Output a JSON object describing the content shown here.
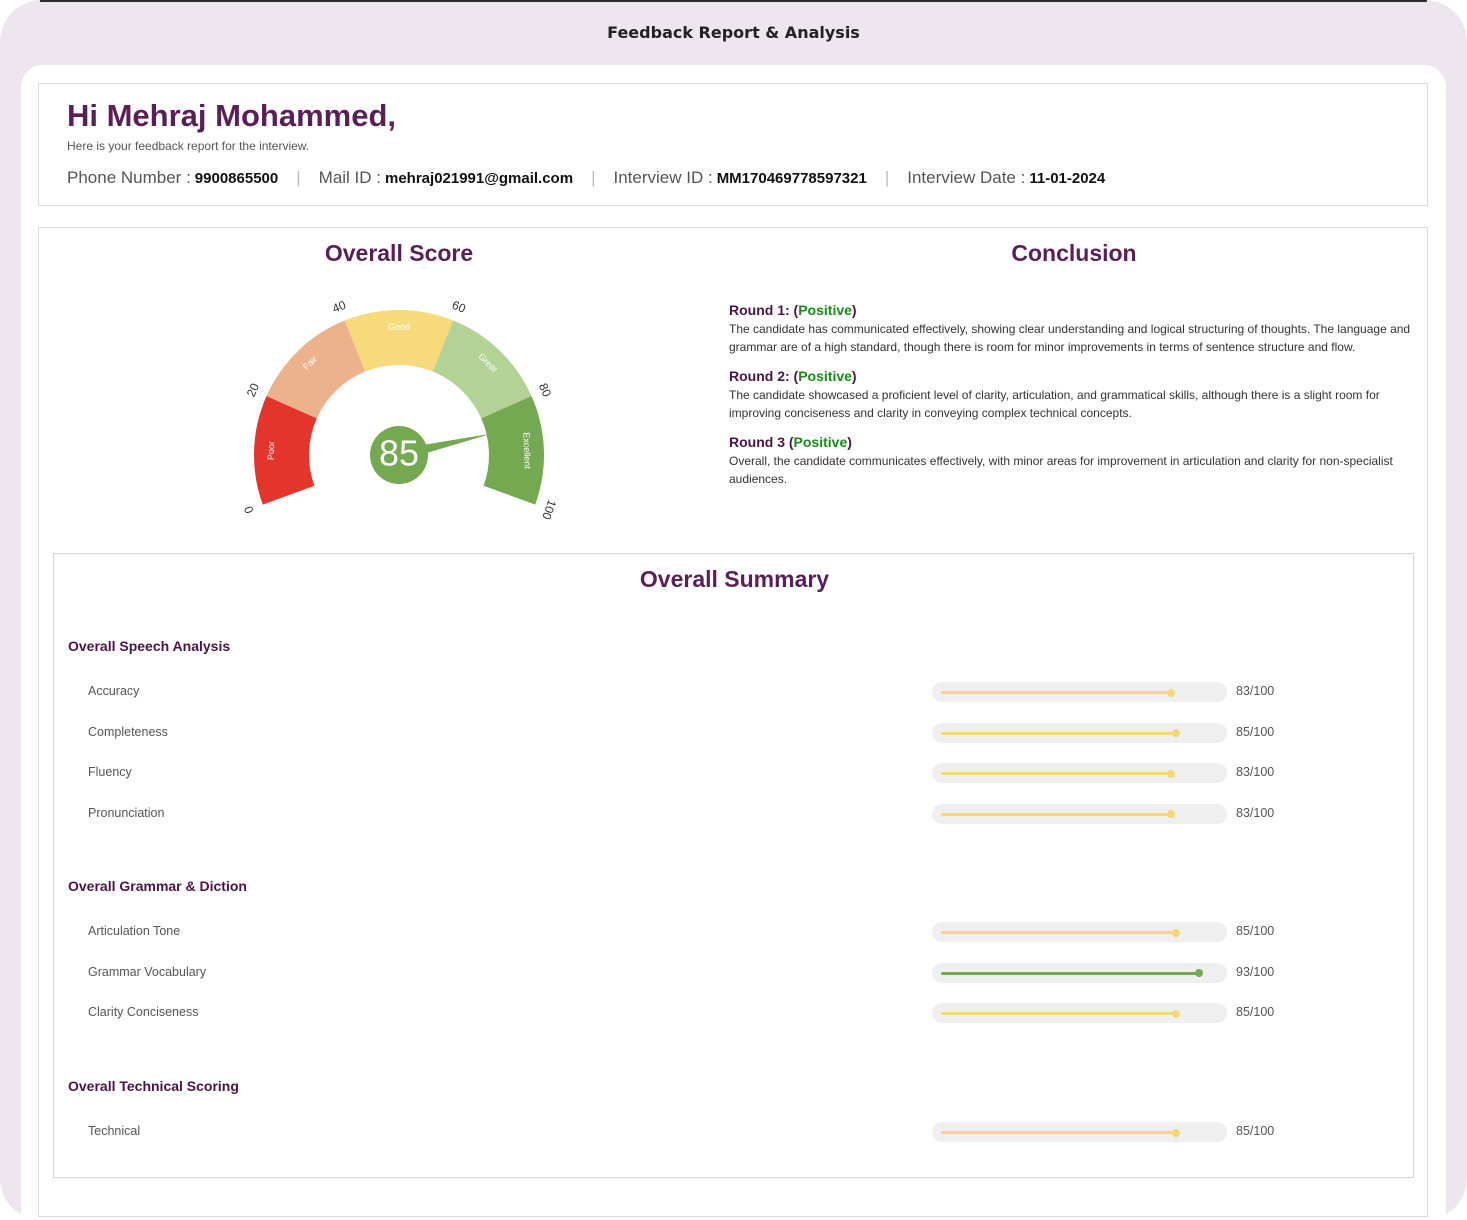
{
  "window": {
    "title": "Feedback Report & Analysis"
  },
  "header": {
    "greeting": "Hi Mehraj Mohammed,",
    "subtitle": "Here is your feedback report for the interview.",
    "phone_label": "Phone Number :",
    "phone": "9900865500",
    "mail_label": "Mail ID :",
    "mail": "mehraj021991@gmail.com",
    "interview_id_label": "Interview ID :",
    "interview_id": "MM170469778597321",
    "interview_date_label": "Interview Date :",
    "interview_date": "11-01-2024"
  },
  "overall_score": {
    "title": "Overall Score",
    "score": 85,
    "score_text": "85",
    "ticks": [
      "0",
      "20",
      "40",
      "60",
      "80",
      "100"
    ],
    "bands": [
      {
        "label": "Poor",
        "from": 0,
        "to": 20,
        "color": "#e3352c"
      },
      {
        "label": "Fair",
        "from": 20,
        "to": 40,
        "color": "#ebb28c"
      },
      {
        "label": "Good",
        "from": 40,
        "to": 60,
        "color": "#f7da7c"
      },
      {
        "label": "Great",
        "from": 60,
        "to": 80,
        "color": "#b3d296"
      },
      {
        "label": "Excellent",
        "from": 80,
        "to": 100,
        "color": "#74a951"
      }
    ],
    "needle_color": "#74a951"
  },
  "conclusion": {
    "title": "Conclusion",
    "rounds": [
      {
        "label": "Round 1:",
        "status": "Positive",
        "text": "The candidate has communicated effectively, showing clear understanding and logical structuring of thoughts. The language and grammar are of a high standard, though there is room for minor improvements in terms of sentence structure and flow."
      },
      {
        "label": "Round 2:",
        "status": "Positive",
        "text": "The candidate showcased a proficient level of clarity, articulation, and grammatical skills, although there is a slight room for improving conciseness and clarity in conveying complex technical concepts."
      },
      {
        "label": "Round 3",
        "status": "Positive",
        "text": "Overall, the candidate communicates effectively, with minor areas for improvement in articulation and clarity for non-specialist audiences."
      }
    ]
  },
  "summary": {
    "title": "Overall Summary",
    "groups": [
      {
        "title": "Overall Speech Analysis",
        "metrics": [
          {
            "label": "Accuracy",
            "value": 83,
            "score_text": "83/100",
            "color": "#f5d77a"
          },
          {
            "label": "Completeness",
            "value": 85,
            "score_text": "85/100",
            "color": "#f5d77a"
          },
          {
            "label": "Fluency",
            "value": 83,
            "score_text": "83/100",
            "color": "#f5d77a"
          },
          {
            "label": "Pronunciation",
            "value": 83,
            "score_text": "83/100",
            "color": "#f5d77a"
          }
        ]
      },
      {
        "title": "Overall Grammar & Diction",
        "metrics": [
          {
            "label": "Articulation Tone",
            "value": 85,
            "score_text": "85/100",
            "color": "#f5d77a"
          },
          {
            "label": "Grammar Vocabulary",
            "value": 93,
            "score_text": "93/100",
            "color": "#74a951"
          },
          {
            "label": "Clarity Conciseness",
            "value": 85,
            "score_text": "85/100",
            "color": "#f5d77a"
          }
        ]
      },
      {
        "title": "Overall Technical Scoring",
        "metrics": [
          {
            "label": "Technical",
            "value": 85,
            "score_text": "85/100",
            "color": "#f5d77a"
          }
        ]
      }
    ]
  }
}
